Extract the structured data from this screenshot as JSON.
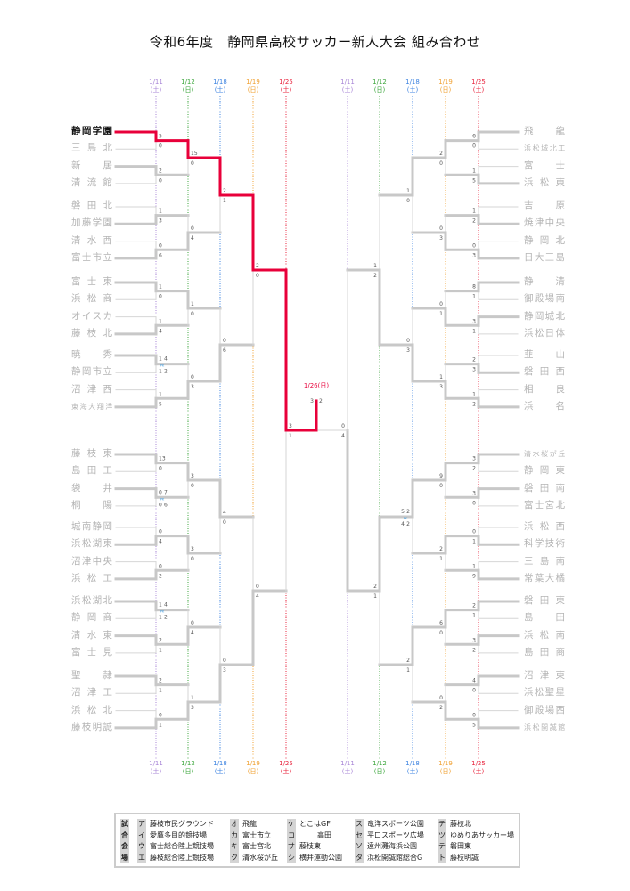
{
  "title": "令和6年度　静岡県高校サッカー新人大会 組み合わせ",
  "colors": {
    "champion_path": "#e8003a",
    "line": "#c8c8c8",
    "thin_line": "#d6d6d6",
    "team_text": "#b4b4b4",
    "pk": "#3b9be0"
  },
  "dates_left": [
    {
      "date": "1/11",
      "day": "(土)",
      "color": "#a784d6"
    },
    {
      "date": "1/12",
      "day": "(日)",
      "color": "#3aa53a"
    },
    {
      "date": "1/18",
      "day": "(土)",
      "color": "#3b82e0"
    },
    {
      "date": "1/19",
      "day": "(日)",
      "color": "#f0a030"
    },
    {
      "date": "1/25",
      "day": "(土)",
      "color": "#e8203a"
    }
  ],
  "dates_right": [
    {
      "date": "1/25",
      "day": "(土)",
      "color": "#e8203a"
    },
    {
      "date": "1/19",
      "day": "(日)",
      "color": "#f0a030"
    },
    {
      "date": "1/18",
      "day": "(土)",
      "color": "#3b82e0"
    },
    {
      "date": "1/12",
      "day": "(日)",
      "color": "#3aa53a"
    },
    {
      "date": "1/11",
      "day": "(土)",
      "color": "#a784d6"
    }
  ],
  "final": {
    "date": "1/26(日)",
    "score": [
      3,
      2
    ]
  },
  "champion": "静岡学園",
  "pk_label": "PK",
  "left": {
    "teams": [
      "静岡学園",
      "三島北",
      "新居",
      "清流館",
      "磐田北",
      "加藤学園",
      "清水西",
      "富士市立",
      "富士東",
      "浜松商",
      "オイスカ",
      "藤枝北",
      "暁秀",
      "静岡市立",
      "沼津西",
      "東海大翔洋",
      "藤枝東",
      "島田工",
      "袋井",
      "桐陽",
      "城南静岡",
      "浜松湖東",
      "沼津中央",
      "浜松工",
      "浜松湖北",
      "静岡商",
      "清水東",
      "富士見",
      "聖隷",
      "沼津工",
      "浜松北",
      "藤枝明誠"
    ],
    "rounds": [
      [
        {
          "score": [
            5,
            0
          ]
        },
        {
          "score": [
            2,
            0
          ]
        },
        {
          "score": [
            1,
            3
          ]
        },
        {
          "score": [
            0,
            6
          ]
        },
        {
          "score": [
            1,
            0
          ]
        },
        {
          "score": [
            1,
            4
          ]
        },
        {
          "score": [
            1,
            1
          ],
          "pk": [
            4,
            2
          ]
        },
        {
          "score": [
            1,
            5
          ]
        },
        {
          "score": [
            13,
            0
          ]
        },
        {
          "score": [
            0,
            0
          ],
          "pk": [
            7,
            6
          ]
        },
        {
          "score": [
            0,
            4
          ]
        },
        {
          "score": [
            0,
            2
          ]
        },
        {
          "score": [
            1,
            1
          ],
          "pk": [
            4,
            2
          ]
        },
        {
          "score": [
            2,
            1
          ]
        },
        {
          "score": [
            2,
            1
          ]
        },
        {
          "score": [
            0,
            1
          ]
        }
      ],
      [
        {
          "score": [
            15,
            0
          ]
        },
        {
          "score": [
            0,
            4
          ]
        },
        {
          "score": [
            1,
            0
          ]
        },
        {
          "score": [
            0,
            3
          ]
        },
        {
          "score": [
            3,
            0
          ]
        },
        {
          "score": [
            3,
            0
          ]
        },
        {
          "score": [
            0,
            4
          ]
        },
        {
          "score": [
            1,
            3
          ]
        }
      ],
      [
        {
          "score": [
            2,
            1
          ]
        },
        {
          "score": [
            0,
            6
          ]
        },
        {
          "score": [
            4,
            0
          ]
        },
        {
          "score": [
            0,
            3
          ]
        }
      ],
      [
        {
          "score": [
            2,
            0
          ]
        },
        {
          "score": [
            0,
            4
          ]
        }
      ],
      [
        {
          "score": [
            3,
            1
          ]
        }
      ]
    ]
  },
  "right": {
    "teams": [
      "飛龍",
      "浜松城北工",
      "富士",
      "浜松東",
      "吉原",
      "焼津中央",
      "静岡北",
      "日大三島",
      "静清",
      "御殿場南",
      "静岡城北",
      "浜松日体",
      "韮山",
      "磐田西",
      "相良",
      "浜名",
      "清水桜が丘",
      "静岡東",
      "磐田南",
      "富士宮北",
      "浜松西",
      "科学技術",
      "三島南",
      "常葉大橘",
      "磐田東",
      "島田",
      "浜松南",
      "島田商",
      "沼津東",
      "浜松聖星",
      "御殿場西",
      "浜松開誠館"
    ],
    "rounds": [
      [
        {
          "score": [
            6,
            0
          ]
        },
        {
          "score": [
            1,
            5
          ]
        },
        {
          "score": [
            1,
            2
          ]
        },
        {
          "score": [
            0,
            3
          ]
        },
        {
          "score": [
            8,
            1
          ]
        },
        {
          "score": [
            3,
            1
          ]
        },
        {
          "score": [
            2,
            3
          ]
        },
        {
          "score": [
            1,
            2
          ]
        },
        {
          "score": [
            3,
            2
          ]
        },
        {
          "score": [
            3,
            0
          ]
        },
        {
          "score": [
            0,
            1
          ]
        },
        {
          "score": [
            1,
            9
          ]
        },
        {
          "score": [
            2,
            1
          ]
        },
        {
          "score": [
            3,
            2
          ]
        },
        {
          "score": [
            4,
            0
          ]
        },
        {
          "score": [
            0,
            5
          ]
        }
      ],
      [
        {
          "score": [
            2,
            0
          ]
        },
        {
          "score": [
            0,
            3
          ]
        },
        {
          "score": [
            0,
            1
          ]
        },
        {
          "score": [
            1,
            3
          ]
        },
        {
          "score": [
            9,
            0
          ]
        },
        {
          "score": [
            2,
            1
          ]
        },
        {
          "score": [
            6,
            0
          ]
        },
        {
          "score": [
            0,
            2
          ]
        }
      ],
      [
        {
          "score": [
            1,
            0
          ]
        },
        {
          "score": [
            0,
            3
          ]
        },
        {
          "score": [
            2,
            2
          ],
          "pk": [
            5,
            4
          ]
        },
        {
          "score": [
            2,
            1
          ]
        }
      ],
      [
        {
          "score": [
            1,
            2
          ]
        },
        {
          "score": [
            2,
            1
          ]
        }
      ],
      [
        {
          "score": [
            0,
            4
          ]
        }
      ]
    ]
  },
  "legend": {
    "heading": "試合会場",
    "venues": [
      {
        "key": "ア",
        "name": "藤枝市民グラウンド"
      },
      {
        "key": "イ",
        "name": "愛鷹多目的競技場"
      },
      {
        "key": "ウ",
        "name": "富士総合陸上競技場"
      },
      {
        "key": "エ",
        "name": "藤枝総合陸上競技場"
      },
      {
        "key": "オ",
        "name": "飛龍"
      },
      {
        "key": "カ",
        "name": "富士市立"
      },
      {
        "key": "キ",
        "name": "富士宮北"
      },
      {
        "key": "ク",
        "name": "清水桜が丘"
      },
      {
        "key": "ケ",
        "name": "とこはGF"
      },
      {
        "key": "コ",
        "name": "高田"
      },
      {
        "key": "サ",
        "name": "藤枝東"
      },
      {
        "key": "シ",
        "name": "横井運動公園"
      },
      {
        "key": "ス",
        "name": "竜洋スポーツ公園"
      },
      {
        "key": "セ",
        "name": "平口スポーツ広場"
      },
      {
        "key": "ソ",
        "name": "遠州灘海浜公園"
      },
      {
        "key": "タ",
        "name": "浜松開誠館総合G"
      },
      {
        "key": "チ",
        "name": "藤枝北"
      },
      {
        "key": "ツ",
        "name": "ゆめりあサッカー場"
      },
      {
        "key": "テ",
        "name": "磐田東"
      },
      {
        "key": "ト",
        "name": "藤枝明誠"
      }
    ]
  }
}
